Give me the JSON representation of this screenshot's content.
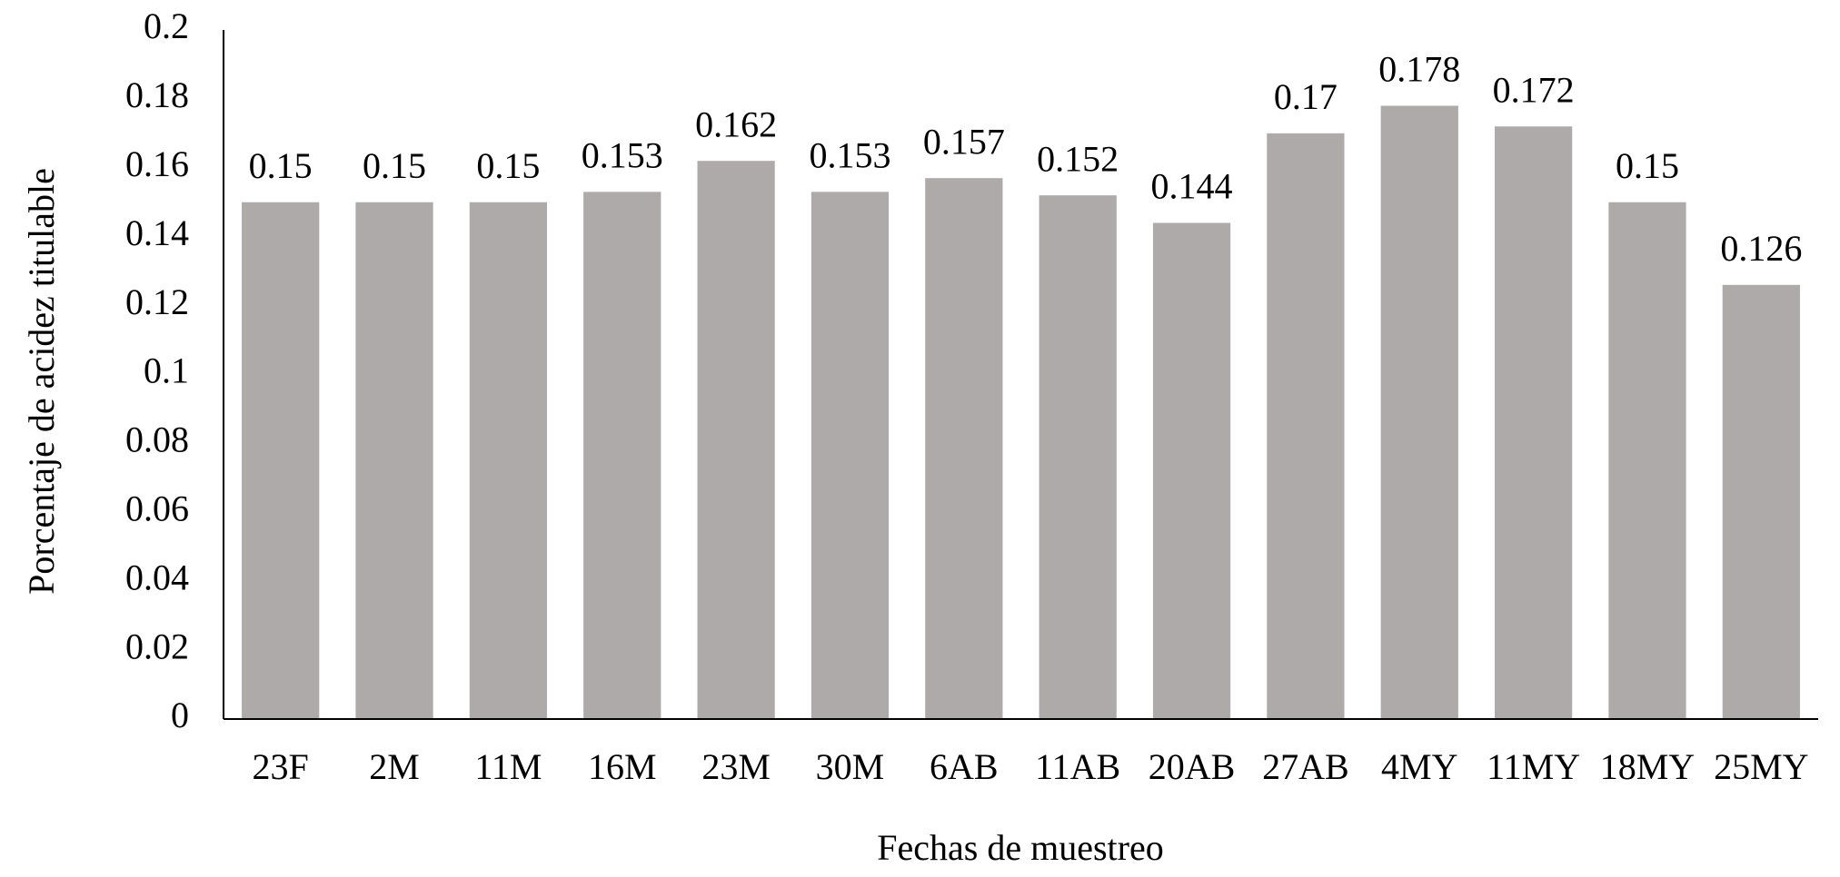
{
  "chart_data": {
    "type": "bar",
    "x_label": "Fechas de muestreo",
    "y_label": "Porcentaje de acidez titulable",
    "categories": [
      "23F",
      "2M",
      "11M",
      "16M",
      "23M",
      "30M",
      "6AB",
      "11AB",
      "20AB",
      "27AB",
      "4MY",
      "11MY",
      "18MY",
      "25MY"
    ],
    "values": [
      0.15,
      0.15,
      0.15,
      0.153,
      0.162,
      0.153,
      0.157,
      0.152,
      0.144,
      0.17,
      0.178,
      0.172,
      0.15,
      0.126
    ],
    "color": "#aeaaaa",
    "ylim": [
      0,
      0.2
    ],
    "yticks": [
      0,
      0.02,
      0.04,
      0.06,
      0.08,
      0.1,
      0.12,
      0.14,
      0.16,
      0.18,
      0.2
    ],
    "grid": false
  }
}
